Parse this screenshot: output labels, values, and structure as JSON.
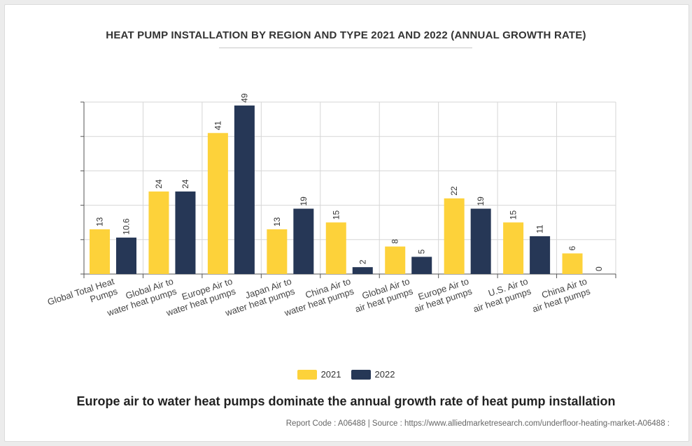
{
  "chart_title": "HEAT PUMP INSTALLATION BY REGION AND TYPE 2021 AND 2022 (ANNUAL GROWTH RATE)",
  "headline": "Europe air to water heat pumps dominate the annual growth rate of heat pump installation",
  "source_line": "Report Code : A06488  |  Source : https://www.alliedmarketresearch.com/underfloor-heating-market-A06488 :",
  "chart_data": {
    "type": "bar",
    "title": "HEAT PUMP INSTALLATION BY REGION AND TYPE 2021 AND 2022 (ANNUAL GROWTH RATE)",
    "categories": [
      [
        "Global Total Heat",
        "Pumps"
      ],
      [
        "Global Air to",
        "water heat pumps"
      ],
      [
        "Europe Air to",
        "water heat pumps"
      ],
      [
        "Japan Air to",
        "water heat pumps"
      ],
      [
        "China Air to",
        "water heat pumps"
      ],
      [
        "Global Air to",
        "air heat pumps"
      ],
      [
        "Europe Air to",
        "air heat pumps"
      ],
      [
        "U.S. Air to",
        "air heat pumps"
      ],
      [
        "China Air to",
        "air heat pumps"
      ]
    ],
    "series": [
      {
        "name": "2021",
        "color": "#fdd23a",
        "values": [
          13,
          24,
          41,
          13,
          15,
          8,
          22,
          15,
          6
        ],
        "labels": [
          "13",
          "24",
          "41",
          "13",
          "15",
          "8",
          "22",
          "15",
          "6"
        ]
      },
      {
        "name": "2022",
        "color": "#263756",
        "values": [
          10.6,
          24,
          49,
          19,
          2,
          5,
          19,
          11,
          0
        ],
        "labels": [
          "10.6",
          "24",
          "49",
          "19",
          "2",
          "5",
          "19",
          "11",
          "0"
        ]
      }
    ],
    "ylim": [
      0,
      50
    ],
    "grid": true,
    "legend": "bottom-center"
  }
}
